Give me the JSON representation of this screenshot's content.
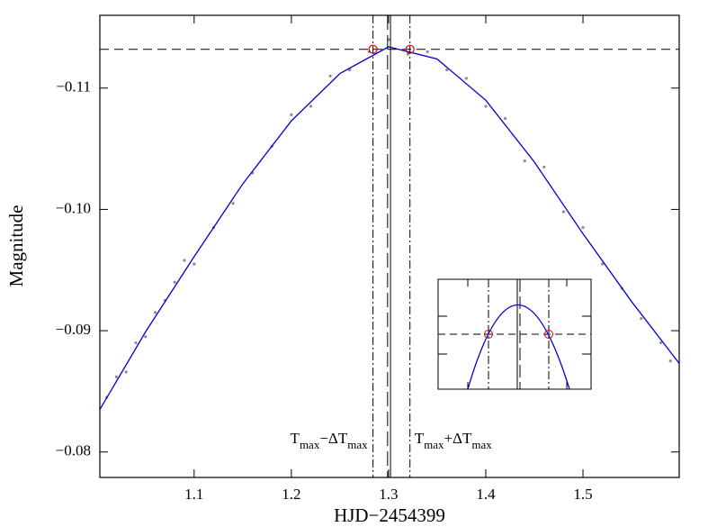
{
  "chart_data": {
    "type": "scatter",
    "xlabel": "HJD−2454399",
    "ylabel": "Magnitude",
    "xlim": [
      1.003,
      1.599
    ],
    "ylim": [
      -0.0779,
      -0.116
    ],
    "xticks": [
      1.1,
      1.2,
      1.3,
      1.4,
      1.5
    ],
    "yticks": [
      {
        "value": -0.08,
        "label": "−0.08"
      },
      {
        "value": -0.09,
        "label": "−0.09"
      },
      {
        "value": -0.1,
        "label": "−0.10"
      },
      {
        "value": -0.11,
        "label": "−0.11"
      }
    ],
    "scatter": {
      "color": "#8c8c8c",
      "x": [
        1.01,
        1.02,
        1.03,
        1.04,
        1.05,
        1.06,
        1.07,
        1.08,
        1.09,
        1.1,
        1.12,
        1.14,
        1.16,
        1.18,
        1.2,
        1.22,
        1.24,
        1.26,
        1.28,
        1.3,
        1.32,
        1.34,
        1.36,
        1.38,
        1.4,
        1.42,
        1.44,
        1.46,
        1.48,
        1.5,
        1.52,
        1.54,
        1.56,
        1.58,
        1.59
      ],
      "values": [
        -0.0845,
        -0.0862,
        -0.0866,
        -0.089,
        -0.0895,
        -0.0915,
        -0.0925,
        -0.094,
        -0.0958,
        -0.0955,
        -0.0985,
        -0.1005,
        -0.103,
        -0.1052,
        -0.1078,
        -0.1085,
        -0.111,
        -0.1115,
        -0.113,
        -0.114,
        -0.1128,
        -0.113,
        -0.1115,
        -0.1108,
        -0.1085,
        -0.1075,
        -0.104,
        -0.1035,
        -0.0998,
        -0.0985,
        -0.0955,
        -0.0935,
        -0.091,
        -0.089,
        -0.0875
      ]
    },
    "fit": {
      "color": "#0000cc",
      "x": [
        1.003,
        1.05,
        1.1,
        1.15,
        1.2,
        1.25,
        1.3,
        1.35,
        1.4,
        1.45,
        1.5,
        1.55,
        1.599
      ],
      "values": [
        -0.0835,
        -0.0899,
        -0.0961,
        -0.1021,
        -0.1073,
        -0.1112,
        -0.1134,
        -0.1124,
        -0.109,
        -0.1039,
        -0.098,
        -0.0924,
        -0.0873
      ]
    },
    "hline": {
      "y": -0.1132,
      "style": "dashed"
    },
    "vlines": [
      {
        "x": 1.284,
        "style": "dashdot",
        "label": [
          {
            "text": "T"
          },
          {
            "text": "max",
            "sub": true
          },
          {
            "text": "−ΔT"
          },
          {
            "text": "max",
            "sub": true
          }
        ]
      },
      {
        "x": 1.302,
        "style": "solid"
      },
      {
        "x": 1.299,
        "style": "longdash"
      },
      {
        "x": 1.322,
        "style": "dashdot",
        "label": [
          {
            "text": "T"
          },
          {
            "text": "max",
            "sub": true
          },
          {
            "text": "+ΔT"
          },
          {
            "text": "max",
            "sub": true
          }
        ]
      }
    ],
    "markers": {
      "color": "#e00000",
      "x": [
        1.284,
        1.322
      ],
      "values": [
        -0.1132,
        -0.1132
      ]
    }
  }
}
